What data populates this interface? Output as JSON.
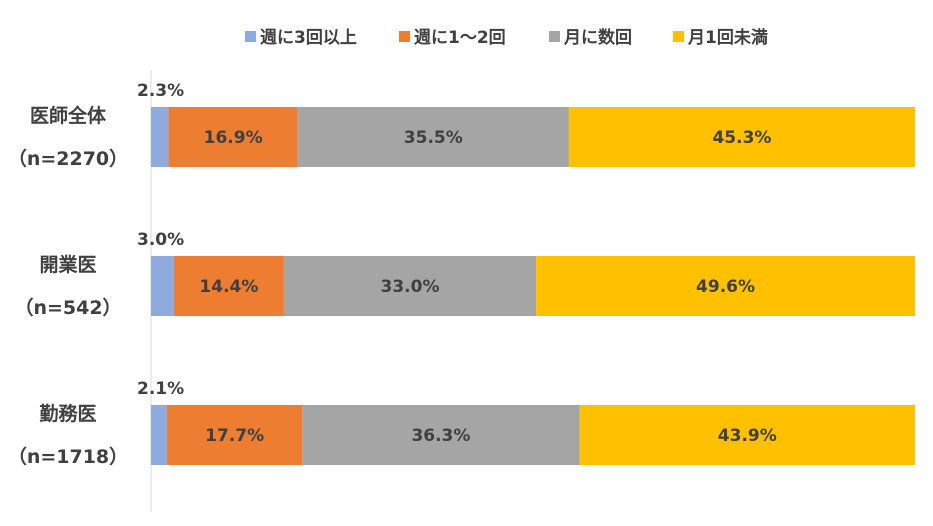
{
  "chart_data": {
    "type": "bar",
    "orientation": "horizontal",
    "stacked": "percent",
    "title": "",
    "xlabel": "",
    "ylabel": "",
    "xlim": [
      0,
      100
    ],
    "grid": false,
    "legend_position": "top",
    "categories": [
      {
        "name": "医師全体",
        "n": "（n=2270）"
      },
      {
        "name": "開業医",
        "n": "（n=542）"
      },
      {
        "name": "勤務医",
        "n": "（n=1718）"
      }
    ],
    "series": [
      {
        "name": "週に3回以上",
        "color": "#8faadc",
        "values": [
          2.3,
          3.0,
          2.1
        ],
        "labels": [
          "2.3%",
          "3.0%",
          "2.1%"
        ]
      },
      {
        "name": "週に1～2回",
        "color": "#ed7d31",
        "values": [
          16.9,
          14.4,
          17.7
        ],
        "labels": [
          "16.9%",
          "14.4%",
          "17.7%"
        ]
      },
      {
        "name": "月に数回",
        "color": "#a5a5a5",
        "values": [
          35.5,
          33.0,
          36.3
        ],
        "labels": [
          "35.5%",
          "33.0%",
          "36.3%"
        ]
      },
      {
        "name": "月1回未満",
        "color": "#ffc000",
        "values": [
          45.3,
          49.6,
          43.9
        ],
        "labels": [
          "45.3%",
          "49.6%",
          "43.9%"
        ]
      }
    ]
  }
}
